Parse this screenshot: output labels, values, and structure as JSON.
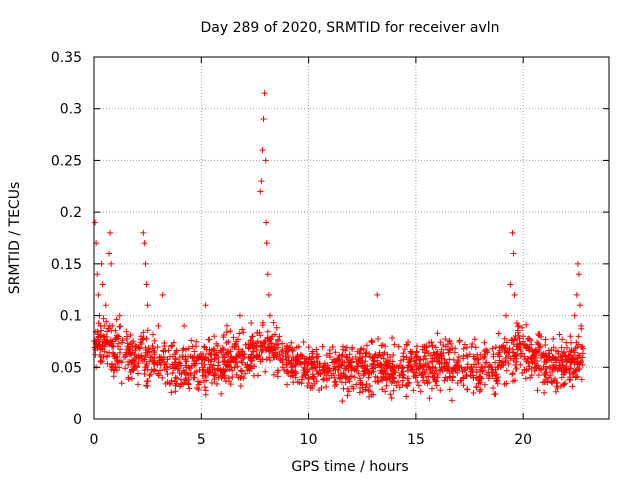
{
  "chart_data": {
    "type": "scatter",
    "title": "Day 289 of 2020, SRMTID for receiver avln",
    "xlabel": "GPS time / hours",
    "ylabel": "SRMTID / TECUs",
    "xlim": [
      0,
      24
    ],
    "ylim": [
      0,
      0.35
    ],
    "xticks": [
      "0",
      "5",
      "10",
      "15",
      "20"
    ],
    "yticks": [
      "0",
      "0.05",
      "0.1",
      "0.15",
      "0.2",
      "0.25",
      "0.3",
      "0.35"
    ],
    "grid": true,
    "marker": "+",
    "series": [
      {
        "name": "SRMTID",
        "color": "#ff0000",
        "points": [
          [
            0.05,
            0.19
          ],
          [
            0.1,
            0.17
          ],
          [
            0.15,
            0.14
          ],
          [
            0.2,
            0.12
          ],
          [
            0.25,
            0.1
          ],
          [
            0.3,
            0.09
          ],
          [
            0.35,
            0.15
          ],
          [
            0.4,
            0.13
          ],
          [
            0.45,
            0.08
          ],
          [
            0.5,
            0.07
          ],
          [
            0.55,
            0.11
          ],
          [
            0.6,
            0.06
          ],
          [
            0.7,
            0.16
          ],
          [
            0.75,
            0.18
          ],
          [
            0.8,
            0.15
          ],
          [
            0.85,
            0.09
          ],
          [
            0.9,
            0.07
          ],
          [
            1.0,
            0.05
          ],
          [
            1.2,
            0.1
          ],
          [
            1.4,
            0.06
          ],
          [
            1.6,
            0.04
          ],
          [
            1.8,
            0.07
          ],
          [
            2.0,
            0.05
          ],
          [
            2.2,
            0.08
          ],
          [
            2.3,
            0.18
          ],
          [
            2.35,
            0.17
          ],
          [
            2.4,
            0.15
          ],
          [
            2.45,
            0.13
          ],
          [
            2.5,
            0.11
          ],
          [
            2.7,
            0.06
          ],
          [
            3.0,
            0.09
          ],
          [
            3.2,
            0.12
          ],
          [
            3.4,
            0.05
          ],
          [
            3.6,
            0.07
          ],
          [
            3.8,
            0.04
          ],
          [
            4.0,
            0.06
          ],
          [
            4.2,
            0.09
          ],
          [
            4.4,
            0.05
          ],
          [
            4.6,
            0.07
          ],
          [
            4.8,
            0.03
          ],
          [
            5.0,
            0.06
          ],
          [
            5.2,
            0.11
          ],
          [
            5.4,
            0.05
          ],
          [
            5.6,
            0.08
          ],
          [
            5.8,
            0.04
          ],
          [
            6.0,
            0.06
          ],
          [
            6.2,
            0.09
          ],
          [
            6.4,
            0.05
          ],
          [
            6.6,
            0.07
          ],
          [
            6.8,
            0.1
          ],
          [
            7.0,
            0.06
          ],
          [
            7.2,
            0.05
          ],
          [
            7.4,
            0.08
          ],
          [
            7.6,
            0.06
          ],
          [
            7.75,
            0.22
          ],
          [
            7.8,
            0.23
          ],
          [
            7.85,
            0.26
          ],
          [
            7.9,
            0.29
          ],
          [
            7.95,
            0.315
          ],
          [
            8.0,
            0.25
          ],
          [
            8.02,
            0.19
          ],
          [
            8.05,
            0.17
          ],
          [
            8.1,
            0.14
          ],
          [
            8.15,
            0.12
          ],
          [
            8.2,
            0.1
          ],
          [
            8.3,
            0.08
          ],
          [
            8.5,
            0.06
          ],
          [
            8.8,
            0.05
          ],
          [
            9.0,
            0.07
          ],
          [
            9.2,
            0.05
          ],
          [
            9.4,
            0.04
          ],
          [
            9.6,
            0.06
          ],
          [
            9.8,
            0.05
          ],
          [
            10.0,
            0.04
          ],
          [
            10.2,
            0.06
          ],
          [
            10.4,
            0.05
          ],
          [
            10.6,
            0.03
          ],
          [
            10.8,
            0.05
          ],
          [
            11.0,
            0.06
          ],
          [
            11.2,
            0.04
          ],
          [
            11.4,
            0.05
          ],
          [
            11.6,
            0.07
          ],
          [
            11.8,
            0.04
          ],
          [
            12.0,
            0.05
          ],
          [
            12.2,
            0.06
          ],
          [
            12.4,
            0.03
          ],
          [
            12.6,
            0.05
          ],
          [
            12.8,
            0.04
          ],
          [
            13.0,
            0.06
          ],
          [
            13.2,
            0.12
          ],
          [
            13.4,
            0.05
          ],
          [
            13.6,
            0.04
          ],
          [
            13.8,
            0.06
          ],
          [
            14.0,
            0.05
          ],
          [
            14.2,
            0.07
          ],
          [
            14.4,
            0.04
          ],
          [
            14.6,
            0.05
          ],
          [
            14.8,
            0.06
          ],
          [
            15.0,
            0.04
          ],
          [
            15.2,
            0.05
          ],
          [
            15.4,
            0.07
          ],
          [
            15.6,
            0.05
          ],
          [
            15.8,
            0.04
          ],
          [
            16.0,
            0.06
          ],
          [
            16.2,
            0.05
          ],
          [
            16.4,
            0.07
          ],
          [
            16.6,
            0.04
          ],
          [
            16.8,
            0.05
          ],
          [
            17.0,
            0.06
          ],
          [
            17.2,
            0.04
          ],
          [
            17.4,
            0.05
          ],
          [
            17.6,
            0.07
          ],
          [
            17.8,
            0.05
          ],
          [
            18.0,
            0.04
          ],
          [
            18.2,
            0.06
          ],
          [
            18.4,
            0.05
          ],
          [
            18.6,
            0.03
          ],
          [
            18.8,
            0.05
          ],
          [
            19.0,
            0.07
          ],
          [
            19.2,
            0.1
          ],
          [
            19.4,
            0.13
          ],
          [
            19.5,
            0.18
          ],
          [
            19.55,
            0.16
          ],
          [
            19.6,
            0.12
          ],
          [
            19.8,
            0.09
          ],
          [
            20.0,
            0.08
          ],
          [
            20.2,
            0.07
          ],
          [
            20.4,
            0.06
          ],
          [
            20.6,
            0.05
          ],
          [
            20.8,
            0.07
          ],
          [
            21.0,
            0.06
          ],
          [
            21.2,
            0.04
          ],
          [
            21.4,
            0.05
          ],
          [
            21.6,
            0.03
          ],
          [
            21.8,
            0.04
          ],
          [
            22.0,
            0.06
          ],
          [
            22.2,
            0.08
          ],
          [
            22.4,
            0.1
          ],
          [
            22.5,
            0.12
          ],
          [
            22.55,
            0.15
          ],
          [
            22.6,
            0.14
          ],
          [
            22.65,
            0.11
          ],
          [
            22.7,
            0.09
          ],
          [
            22.75,
            0.07
          ]
        ]
      }
    ],
    "noise": {
      "count": 1700,
      "seed": 289,
      "baseline_profile": [
        [
          0,
          0.075
        ],
        [
          1,
          0.065
        ],
        [
          2,
          0.06
        ],
        [
          3,
          0.055
        ],
        [
          4,
          0.05
        ],
        [
          5,
          0.05
        ],
        [
          6,
          0.055
        ],
        [
          7,
          0.06
        ],
        [
          8,
          0.07
        ],
        [
          9,
          0.058
        ],
        [
          10,
          0.048
        ],
        [
          12,
          0.048
        ],
        [
          14,
          0.05
        ],
        [
          16,
          0.052
        ],
        [
          18,
          0.05
        ],
        [
          19,
          0.055
        ],
        [
          20,
          0.068
        ],
        [
          21,
          0.055
        ],
        [
          22,
          0.05
        ],
        [
          22.8,
          0.06
        ]
      ],
      "x_range": [
        0,
        22.8
      ],
      "spread": 0.022
    }
  }
}
